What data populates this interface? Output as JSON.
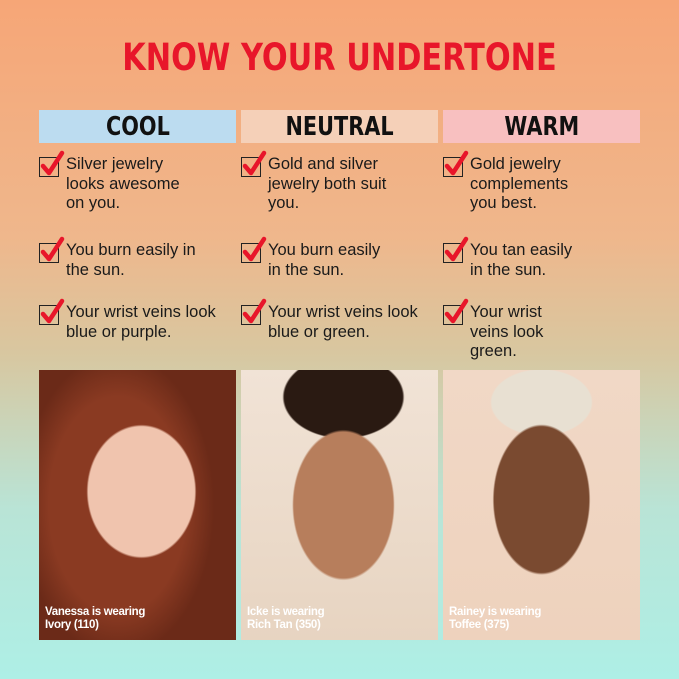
{
  "title": "KNOW YOUR UNDERTONE",
  "colors": {
    "title": "#e8162a",
    "cool": "#bcdcf0",
    "neutral": "#f5d0b8",
    "warm": "#f8c0c0",
    "check": "#e8162a"
  },
  "columns": [
    {
      "header": "COOL",
      "items": [
        "Silver jewelry looks awesome on you.",
        "You burn easily in the sun.",
        "Your wrist veins look blue or purple."
      ],
      "photo_caption": [
        "Vanessa is wearing",
        "Ivory (110)"
      ]
    },
    {
      "header": "NEUTRAL",
      "items": [
        "Gold and silver jewelry both suit you.",
        "You burn easily in the sun.",
        "Your wrist veins look blue or green."
      ],
      "photo_caption": [
        "Icke is wearing",
        "Rich Tan (350)"
      ]
    },
    {
      "header": "WARM",
      "items": [
        "Gold jewelry complements you best.",
        "You tan easily in the sun.",
        "Your wrist veins look green."
      ],
      "photo_caption": [
        "Rainey is wearing",
        "Toffee (375)"
      ]
    }
  ]
}
